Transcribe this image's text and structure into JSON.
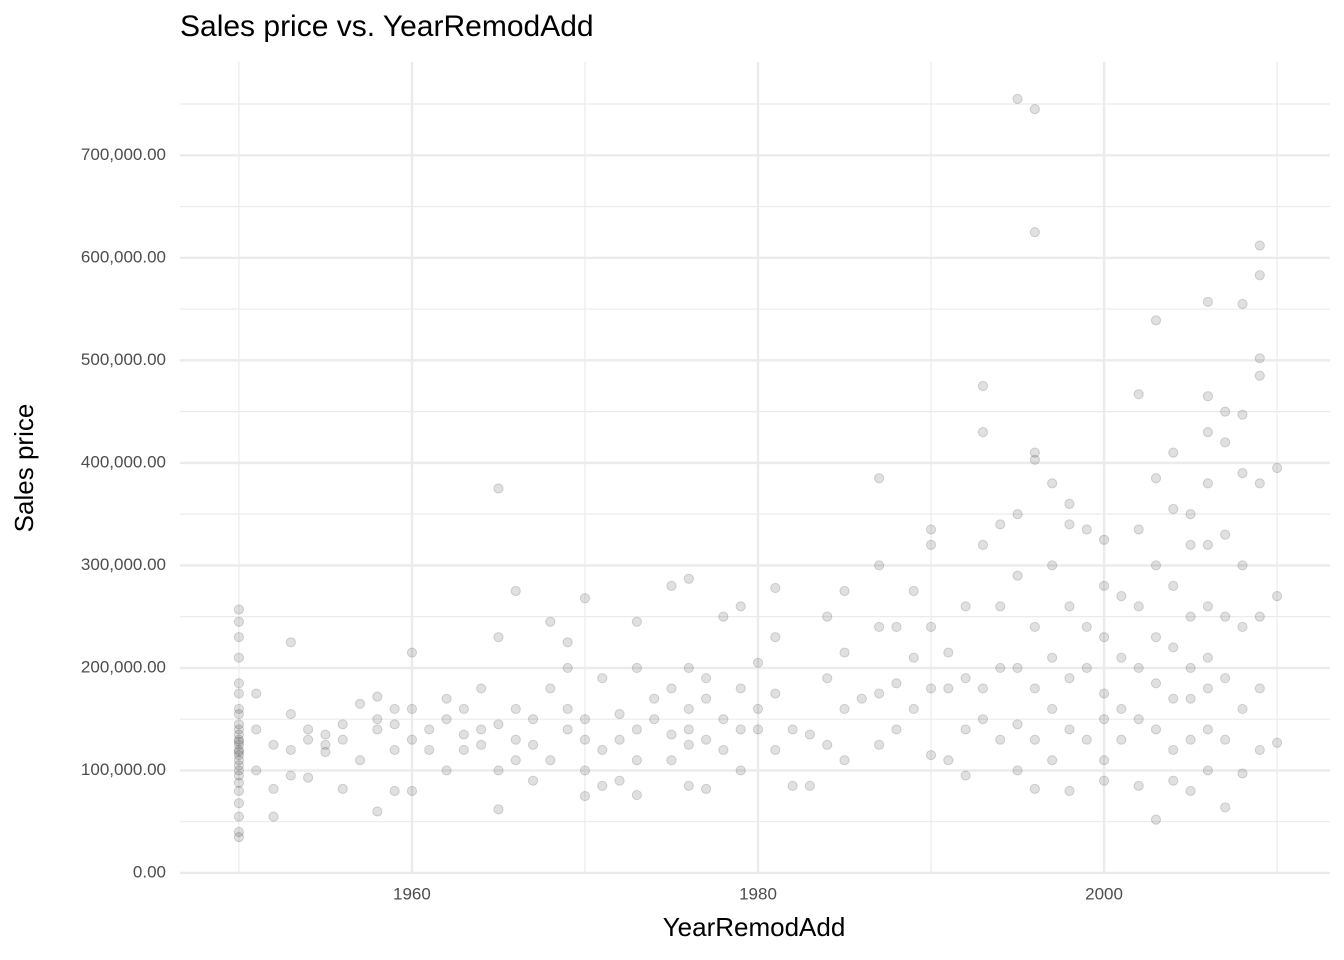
{
  "chart_data": {
    "type": "scatter",
    "title": "Sales price vs. YearRemodAdd",
    "x_label": "YearRemodAdd",
    "y_label": "Sales price",
    "color": "#000000",
    "grid": true,
    "xlim": [
      1947,
      2013
    ],
    "xticks": [
      1960,
      1980,
      2000
    ],
    "ylim": [
      -1000,
      791000
    ],
    "yticks": [
      {
        "value": 0,
        "label": "0.00"
      },
      {
        "value": 100000,
        "label": "100,000.00"
      },
      {
        "value": 200000,
        "label": "200,000.00"
      },
      {
        "value": 300000,
        "label": "300,000.00"
      },
      {
        "value": 400000,
        "label": "400,000.00"
      },
      {
        "value": 500000,
        "label": "500,000.00"
      },
      {
        "value": 600000,
        "label": "600,000.00"
      },
      {
        "value": 700000,
        "label": "700,000.00"
      }
    ],
    "x": [
      1950,
      1950,
      1950,
      1950,
      1950,
      1950,
      1950,
      1950,
      1950,
      1950,
      1950,
      1950,
      1950,
      1950,
      1950,
      1950,
      1950,
      1950,
      1950,
      1950,
      1950,
      1950,
      1950,
      1950,
      1950,
      1950,
      1950,
      1951,
      1951,
      1951,
      1952,
      1952,
      1952,
      1953,
      1953,
      1953,
      1953,
      1954,
      1954,
      1954,
      1955,
      1955,
      1955,
      1956,
      1956,
      1956,
      1957,
      1957,
      1958,
      1958,
      1958,
      1958,
      1959,
      1959,
      1959,
      1959,
      1960,
      1960,
      1960,
      1960,
      1961,
      1961,
      1962,
      1962,
      1962,
      1963,
      1963,
      1963,
      1964,
      1964,
      1964,
      1965,
      1965,
      1965,
      1965,
      1965,
      1966,
      1966,
      1966,
      1966,
      1967,
      1967,
      1967,
      1968,
      1968,
      1968,
      1969,
      1969,
      1969,
      1969,
      1970,
      1970,
      1970,
      1970,
      1970,
      1971,
      1971,
      1971,
      1972,
      1972,
      1972,
      1973,
      1973,
      1973,
      1973,
      1973,
      1974,
      1974,
      1975,
      1975,
      1975,
      1975,
      1976,
      1976,
      1976,
      1976,
      1976,
      1976,
      1977,
      1977,
      1977,
      1977,
      1978,
      1978,
      1978,
      1979,
      1979,
      1979,
      1979,
      1980,
      1980,
      1980,
      1981,
      1981,
      1981,
      1981,
      1982,
      1982,
      1983,
      1983,
      1984,
      1984,
      1984,
      1985,
      1985,
      1985,
      1985,
      1986,
      1987,
      1987,
      1987,
      1987,
      1987,
      1988,
      1988,
      1988,
      1989,
      1989,
      1989,
      1990,
      1990,
      1990,
      1990,
      1990,
      1991,
      1991,
      1991,
      1992,
      1992,
      1992,
      1992,
      1993,
      1993,
      1993,
      1993,
      1993,
      1994,
      1994,
      1994,
      1994,
      1995,
      1995,
      1995,
      1995,
      1995,
      1995,
      1996,
      1996,
      1996,
      1996,
      1996,
      1996,
      1996,
      1996,
      1997,
      1997,
      1997,
      1997,
      1997,
      1998,
      1998,
      1998,
      1998,
      1998,
      1998,
      1999,
      1999,
      1999,
      1999,
      2000,
      2000,
      2000,
      2000,
      2000,
      2000,
      2000,
      2001,
      2001,
      2001,
      2001,
      2002,
      2002,
      2002,
      2002,
      2002,
      2002,
      2003,
      2003,
      2003,
      2003,
      2003,
      2003,
      2003,
      2004,
      2004,
      2004,
      2004,
      2004,
      2004,
      2004,
      2005,
      2005,
      2005,
      2005,
      2005,
      2005,
      2005,
      2006,
      2006,
      2006,
      2006,
      2006,
      2006,
      2006,
      2006,
      2006,
      2006,
      2007,
      2007,
      2007,
      2007,
      2007,
      2007,
      2007,
      2008,
      2008,
      2008,
      2008,
      2008,
      2008,
      2008,
      2009,
      2009,
      2009,
      2009,
      2009,
      2009,
      2009,
      2009,
      2010,
      2010,
      2010
    ],
    "y": [
      35000,
      40000,
      55000,
      68000,
      80000,
      88000,
      95000,
      100000,
      105000,
      110000,
      115000,
      118000,
      120000,
      125000,
      128000,
      130000,
      135000,
      140000,
      145000,
      155000,
      160000,
      175000,
      185000,
      210000,
      230000,
      245000,
      257000,
      140000,
      100000,
      175000,
      125000,
      82000,
      55000,
      225000,
      155000,
      95000,
      120000,
      130000,
      140000,
      93000,
      135000,
      125000,
      118000,
      145000,
      82000,
      130000,
      165000,
      110000,
      60000,
      150000,
      140000,
      172000,
      145000,
      80000,
      120000,
      160000,
      215000,
      130000,
      160000,
      80000,
      140000,
      120000,
      170000,
      100000,
      150000,
      135000,
      160000,
      120000,
      180000,
      140000,
      125000,
      375000,
      230000,
      62000,
      145000,
      100000,
      275000,
      160000,
      110000,
      130000,
      150000,
      90000,
      125000,
      245000,
      180000,
      110000,
      225000,
      200000,
      140000,
      160000,
      268000,
      75000,
      130000,
      150000,
      100000,
      190000,
      85000,
      120000,
      155000,
      130000,
      90000,
      245000,
      200000,
      76000,
      140000,
      110000,
      170000,
      150000,
      280000,
      180000,
      135000,
      110000,
      287000,
      200000,
      160000,
      85000,
      125000,
      140000,
      190000,
      170000,
      82000,
      130000,
      250000,
      150000,
      120000,
      260000,
      180000,
      100000,
      140000,
      205000,
      140000,
      160000,
      278000,
      230000,
      175000,
      120000,
      85000,
      140000,
      85000,
      135000,
      250000,
      190000,
      125000,
      275000,
      215000,
      160000,
      110000,
      170000,
      300000,
      385000,
      240000,
      175000,
      125000,
      240000,
      185000,
      140000,
      275000,
      210000,
      160000,
      335000,
      320000,
      240000,
      180000,
      115000,
      215000,
      180000,
      110000,
      260000,
      190000,
      140000,
      95000,
      475000,
      430000,
      320000,
      180000,
      150000,
      340000,
      260000,
      200000,
      130000,
      755000,
      350000,
      290000,
      200000,
      145000,
      100000,
      745000,
      625000,
      410000,
      403000,
      240000,
      180000,
      130000,
      82000,
      380000,
      300000,
      210000,
      160000,
      110000,
      360000,
      340000,
      260000,
      190000,
      140000,
      80000,
      335000,
      240000,
      200000,
      130000,
      325000,
      280000,
      230000,
      175000,
      150000,
      110000,
      90000,
      270000,
      210000,
      160000,
      130000,
      467000,
      335000,
      260000,
      200000,
      150000,
      85000,
      539000,
      385000,
      300000,
      230000,
      185000,
      140000,
      52000,
      410000,
      355000,
      280000,
      220000,
      170000,
      120000,
      90000,
      350000,
      320000,
      250000,
      200000,
      170000,
      130000,
      80000,
      557000,
      465000,
      430000,
      380000,
      320000,
      260000,
      210000,
      180000,
      140000,
      100000,
      450000,
      420000,
      330000,
      250000,
      190000,
      130000,
      64000,
      555000,
      447000,
      390000,
      300000,
      240000,
      160000,
      97000,
      612000,
      583000,
      502000,
      485000,
      380000,
      250000,
      180000,
      120000,
      395000,
      270000,
      127000
    ]
  }
}
